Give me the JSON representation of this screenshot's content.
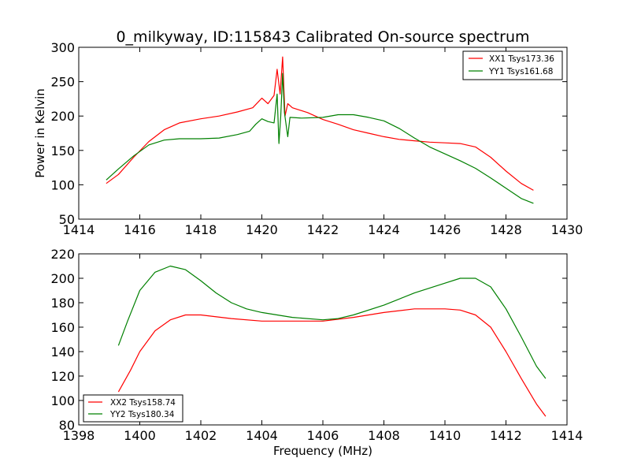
{
  "chart_data": [
    {
      "type": "line",
      "title": "0_milkyway, ID:115843 Calibrated On-source spectrum",
      "xlabel": "",
      "ylabel": "Power in Kelvin",
      "xlim": [
        1414,
        1430
      ],
      "ylim": [
        50,
        300
      ],
      "xticks": [
        "1414",
        "1416",
        "1418",
        "1420",
        "1422",
        "1424",
        "1426",
        "1428",
        "1430"
      ],
      "yticks": [
        "50",
        "100",
        "150",
        "200",
        "250",
        "300"
      ],
      "grid": false,
      "legend_position": "top-right",
      "series": [
        {
          "name": "XX1 Tsys173.36",
          "color": "#ff0000",
          "points": [
            [
              1414.9,
              102
            ],
            [
              1415.3,
              115
            ],
            [
              1415.8,
              140
            ],
            [
              1416.3,
              163
            ],
            [
              1416.8,
              180
            ],
            [
              1417.3,
              190
            ],
            [
              1418,
              196
            ],
            [
              1418.6,
              200
            ],
            [
              1419.2,
              206
            ],
            [
              1419.7,
              212
            ],
            [
              1420,
              226
            ],
            [
              1420.2,
              218
            ],
            [
              1420.4,
              230
            ],
            [
              1420.5,
              268
            ],
            [
              1420.6,
              232
            ],
            [
              1420.68,
              286
            ],
            [
              1420.76,
              200
            ],
            [
              1420.85,
              218
            ],
            [
              1421,
              212
            ],
            [
              1421.5,
              205
            ],
            [
              1422,
              195
            ],
            [
              1422.5,
              188
            ],
            [
              1423,
              180
            ],
            [
              1423.5,
              175
            ],
            [
              1424,
              170
            ],
            [
              1424.5,
              166
            ],
            [
              1425,
              164
            ],
            [
              1425.5,
              162
            ],
            [
              1426,
              161
            ],
            [
              1426.5,
              160
            ],
            [
              1427,
              155
            ],
            [
              1427.5,
              140
            ],
            [
              1428,
              120
            ],
            [
              1428.5,
              102
            ],
            [
              1428.9,
              92
            ]
          ]
        },
        {
          "name": "YY1 Tsys161.68",
          "color": "#008000",
          "points": [
            [
              1414.9,
              107
            ],
            [
              1415.3,
              123
            ],
            [
              1415.8,
              142
            ],
            [
              1416.3,
              158
            ],
            [
              1416.8,
              165
            ],
            [
              1417.3,
              167
            ],
            [
              1418,
              167
            ],
            [
              1418.6,
              168
            ],
            [
              1419.2,
              173
            ],
            [
              1419.6,
              178
            ],
            [
              1419.8,
              188
            ],
            [
              1420,
              196
            ],
            [
              1420.2,
              192
            ],
            [
              1420.4,
              190
            ],
            [
              1420.5,
              232
            ],
            [
              1420.56,
              160
            ],
            [
              1420.62,
              200
            ],
            [
              1420.68,
              262
            ],
            [
              1420.74,
              205
            ],
            [
              1420.85,
              170
            ],
            [
              1420.92,
              198
            ],
            [
              1421.3,
              197
            ],
            [
              1422,
              198
            ],
            [
              1422.5,
              202
            ],
            [
              1423,
              202
            ],
            [
              1423.5,
              198
            ],
            [
              1424,
              193
            ],
            [
              1424.5,
              182
            ],
            [
              1425,
              168
            ],
            [
              1425.5,
              155
            ],
            [
              1426,
              145
            ],
            [
              1426.5,
              135
            ],
            [
              1427,
              124
            ],
            [
              1427.5,
              110
            ],
            [
              1428,
              95
            ],
            [
              1428.5,
              80
            ],
            [
              1428.9,
              73
            ]
          ]
        }
      ]
    },
    {
      "type": "line",
      "title": "",
      "xlabel": "Frequency (MHz)",
      "ylabel": "",
      "xlim": [
        1398,
        1414
      ],
      "ylim": [
        80,
        220
      ],
      "xticks": [
        "1398",
        "1400",
        "1402",
        "1404",
        "1406",
        "1408",
        "1410",
        "1412",
        "1414"
      ],
      "yticks": [
        "80",
        "100",
        "120",
        "140",
        "160",
        "180",
        "200",
        "220"
      ],
      "grid": false,
      "legend_position": "bottom-left",
      "series": [
        {
          "name": "XX2 Tsys158.74",
          "color": "#ff0000",
          "points": [
            [
              1399.3,
              107
            ],
            [
              1399.7,
              125
            ],
            [
              1400,
              140
            ],
            [
              1400.5,
              157
            ],
            [
              1401,
              166
            ],
            [
              1401.5,
              170
            ],
            [
              1402,
              170
            ],
            [
              1403,
              167
            ],
            [
              1404,
              165
            ],
            [
              1405,
              165
            ],
            [
              1406,
              165
            ],
            [
              1407,
              168
            ],
            [
              1408,
              172
            ],
            [
              1409,
              175
            ],
            [
              1410,
              175
            ],
            [
              1410.5,
              174
            ],
            [
              1411,
              170
            ],
            [
              1411.5,
              160
            ],
            [
              1412,
              140
            ],
            [
              1412.5,
              118
            ],
            [
              1413,
              97
            ],
            [
              1413.3,
              87
            ]
          ]
        },
        {
          "name": "YY2 Tsys180.34",
          "color": "#008000",
          "points": [
            [
              1399.3,
              145
            ],
            [
              1399.6,
              165
            ],
            [
              1400,
              190
            ],
            [
              1400.5,
              205
            ],
            [
              1401,
              210
            ],
            [
              1401.5,
              207
            ],
            [
              1402,
              198
            ],
            [
              1402.5,
              188
            ],
            [
              1403,
              180
            ],
            [
              1403.5,
              175
            ],
            [
              1404,
              172
            ],
            [
              1405,
              168
            ],
            [
              1406,
              166
            ],
            [
              1406.5,
              167
            ],
            [
              1407,
              170
            ],
            [
              1408,
              178
            ],
            [
              1409,
              188
            ],
            [
              1410,
              196
            ],
            [
              1410.5,
              200
            ],
            [
              1411,
              200
            ],
            [
              1411.5,
              193
            ],
            [
              1412,
              175
            ],
            [
              1412.5,
              152
            ],
            [
              1413,
              128
            ],
            [
              1413.3,
              118
            ]
          ]
        }
      ]
    }
  ]
}
